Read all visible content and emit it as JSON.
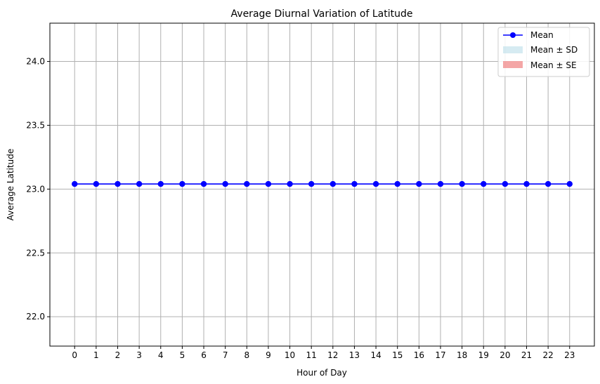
{
  "chart_data": {
    "type": "line",
    "title": "Average Diurnal Variation of Latitude",
    "xlabel": "Hour of Day",
    "ylabel": "Average Latitude",
    "x": [
      0,
      1,
      2,
      3,
      4,
      5,
      6,
      7,
      8,
      9,
      10,
      11,
      12,
      13,
      14,
      15,
      16,
      17,
      18,
      19,
      20,
      21,
      22,
      23
    ],
    "xticks": [
      "0",
      "1",
      "2",
      "3",
      "4",
      "5",
      "6",
      "7",
      "8",
      "9",
      "10",
      "11",
      "12",
      "13",
      "14",
      "15",
      "16",
      "17",
      "18",
      "19",
      "20",
      "21",
      "22",
      "23"
    ],
    "xlim": [
      -1.15,
      24.15
    ],
    "ylim": [
      21.77,
      24.3
    ],
    "yticks": [
      "22.0",
      "22.5",
      "23.0",
      "23.5",
      "24.0"
    ],
    "ytick_values": [
      22.0,
      22.5,
      23.0,
      23.5,
      24.0
    ],
    "grid": true,
    "legend_position": "top-right",
    "series": [
      {
        "name": "Mean",
        "color": "#0000ff",
        "marker": "circle",
        "values": [
          23.04,
          23.04,
          23.04,
          23.04,
          23.04,
          23.04,
          23.04,
          23.04,
          23.04,
          23.04,
          23.04,
          23.04,
          23.04,
          23.04,
          23.04,
          23.04,
          23.04,
          23.04,
          23.04,
          23.04,
          23.04,
          23.04,
          23.04,
          23.04
        ]
      }
    ],
    "bands": [
      {
        "name": "Mean ± SD",
        "color": "#add8e6",
        "opacity": 0.5
      },
      {
        "name": "Mean ± SE",
        "color": "#f08080",
        "opacity": 0.7
      }
    ]
  }
}
